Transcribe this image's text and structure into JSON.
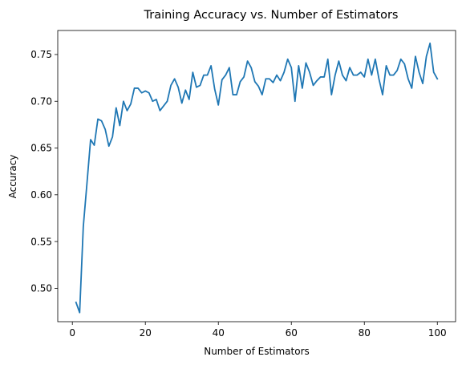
{
  "chart_data": {
    "type": "line",
    "title": "Training Accuracy vs. Number of Estimators",
    "xlabel": "Number of Estimators",
    "ylabel": "Accuracy",
    "xlim": [
      -4.0,
      105.0
    ],
    "ylim": [
      0.4643,
      0.7757
    ],
    "xticks": [
      0,
      20,
      40,
      60,
      80,
      100
    ],
    "yticks": [
      0.5,
      0.55,
      0.6,
      0.65,
      0.7,
      0.75
    ],
    "xtick_labels": [
      "0",
      "20",
      "40",
      "60",
      "80",
      "100"
    ],
    "ytick_labels": [
      "0.50",
      "0.55",
      "0.60",
      "0.65",
      "0.70",
      "0.75"
    ],
    "grid": false,
    "legend": "none",
    "series": [
      {
        "color": "#1f77b4",
        "x": [
          1,
          2,
          3,
          4,
          5,
          6,
          7,
          8,
          9,
          10,
          11,
          12,
          13,
          14,
          15,
          16,
          17,
          18,
          19,
          20,
          21,
          22,
          23,
          24,
          25,
          26,
          27,
          28,
          29,
          30,
          31,
          32,
          33,
          34,
          35,
          36,
          37,
          38,
          39,
          40,
          41,
          42,
          43,
          44,
          45,
          46,
          47,
          48,
          49,
          50,
          51,
          52,
          53,
          54,
          55,
          56,
          57,
          58,
          59,
          60,
          61,
          62,
          63,
          64,
          65,
          66,
          67,
          68,
          69,
          70,
          71,
          72,
          73,
          74,
          75,
          76,
          77,
          78,
          79,
          80,
          81,
          82,
          83,
          84,
          85,
          86,
          87,
          88,
          89,
          90,
          91,
          92,
          93,
          94,
          95,
          96,
          97,
          98,
          99,
          100
        ],
        "values": [
          0.485,
          0.474,
          0.566,
          0.612,
          0.659,
          0.653,
          0.681,
          0.679,
          0.67,
          0.652,
          0.662,
          0.693,
          0.674,
          0.7,
          0.69,
          0.697,
          0.714,
          0.714,
          0.709,
          0.711,
          0.709,
          0.7,
          0.702,
          0.69,
          0.695,
          0.7,
          0.717,
          0.724,
          0.715,
          0.698,
          0.712,
          0.702,
          0.731,
          0.715,
          0.717,
          0.728,
          0.728,
          0.738,
          0.713,
          0.696,
          0.723,
          0.728,
          0.736,
          0.707,
          0.707,
          0.721,
          0.726,
          0.743,
          0.736,
          0.721,
          0.716,
          0.707,
          0.724,
          0.724,
          0.72,
          0.728,
          0.722,
          0.731,
          0.745,
          0.736,
          0.7,
          0.738,
          0.714,
          0.741,
          0.731,
          0.717,
          0.722,
          0.726,
          0.726,
          0.745,
          0.707,
          0.728,
          0.743,
          0.728,
          0.722,
          0.736,
          0.728,
          0.728,
          0.731,
          0.726,
          0.745,
          0.728,
          0.745,
          0.724,
          0.707,
          0.738,
          0.728,
          0.728,
          0.733,
          0.745,
          0.74,
          0.724,
          0.714,
          0.748,
          0.731,
          0.719,
          0.748,
          0.762,
          0.731,
          0.724
        ]
      }
    ]
  }
}
